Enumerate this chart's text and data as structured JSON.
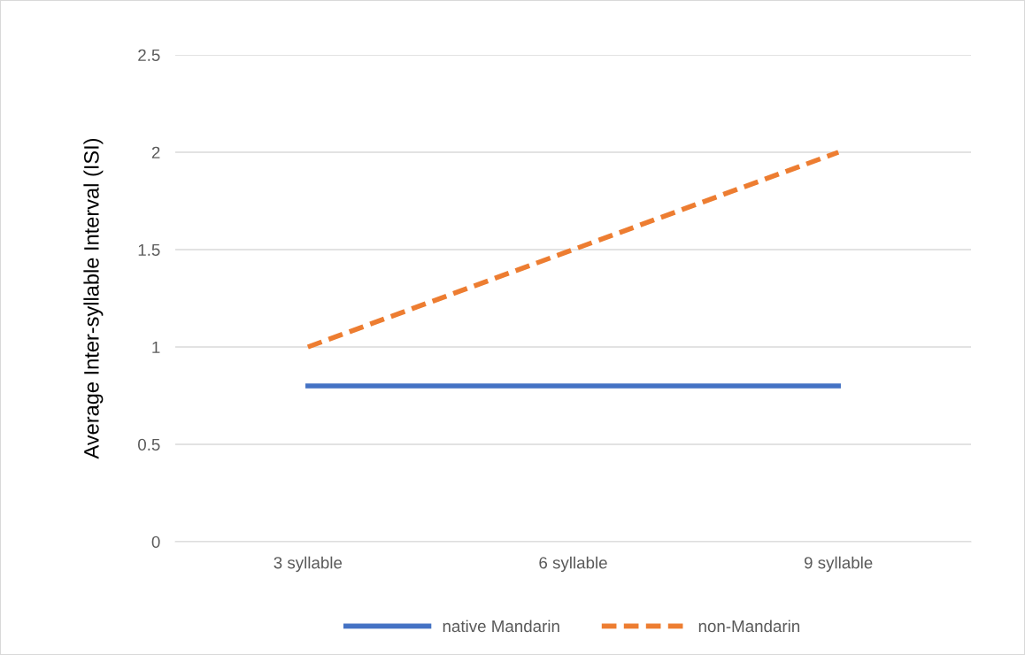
{
  "chart_data": {
    "type": "line",
    "ylabel": "Average Inter-syllable Interval (ISI)",
    "categories": [
      "3 syllable",
      "6 syllable",
      "9 syllable"
    ],
    "series": [
      {
        "name": "native Mandarin",
        "color": "#4472c4",
        "values": [
          0.8,
          0.8,
          0.8
        ],
        "line_style": "solid"
      },
      {
        "name": "non-Mandarin",
        "color": "#ed7d31",
        "values": [
          1,
          1.5,
          2
        ],
        "line_style": "dashed"
      }
    ],
    "ylim": [
      0,
      2.5
    ],
    "yticks": [
      0,
      0.5,
      1,
      1.5,
      2,
      2.5
    ],
    "grid": "y",
    "legend": "bottom",
    "marker": "none"
  }
}
